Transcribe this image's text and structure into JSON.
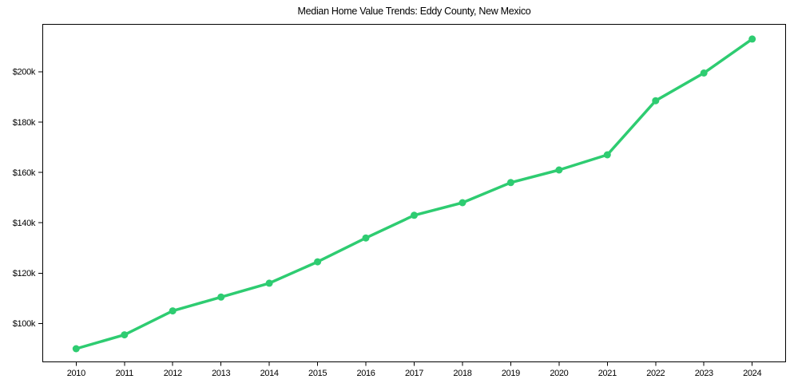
{
  "chart_data": {
    "type": "line",
    "title": "Median Home Value Trends: Eddy County, New Mexico",
    "x": [
      2010,
      2011,
      2012,
      2013,
      2014,
      2015,
      2016,
      2017,
      2018,
      2019,
      2020,
      2021,
      2022,
      2023,
      2024
    ],
    "xtick_labels": [
      "2010",
      "2011",
      "2012",
      "2013",
      "2014",
      "2015",
      "2016",
      "2017",
      "2018",
      "2019",
      "2020",
      "2021",
      "2022",
      "2023",
      "2024"
    ],
    "series": [
      {
        "name": "Median Home Value",
        "values": [
          90000,
          95500,
          105000,
          110500,
          116000,
          124500,
          134000,
          143000,
          148000,
          156000,
          161000,
          167000,
          188500,
          199500,
          213000
        ],
        "color": "#2ecc71"
      }
    ],
    "xlabel": "",
    "ylabel": "",
    "xlim": [
      2009.3,
      2024.7
    ],
    "ylim": [
      84600,
      219000
    ],
    "yticks": [
      {
        "value": 100000,
        "label": "$100k"
      },
      {
        "value": 120000,
        "label": "$120k"
      },
      {
        "value": 140000,
        "label": "$140k"
      },
      {
        "value": 160000,
        "label": "$160k"
      },
      {
        "value": 180000,
        "label": "$180k"
      },
      {
        "value": 200000,
        "label": "$200k"
      }
    ],
    "grid": false,
    "legend": "none",
    "marker": "circle",
    "line_width": 3.5,
    "marker_radius": 4.5,
    "spine_color": "#000000",
    "text_color": "#000000",
    "background": "#ffffff"
  }
}
